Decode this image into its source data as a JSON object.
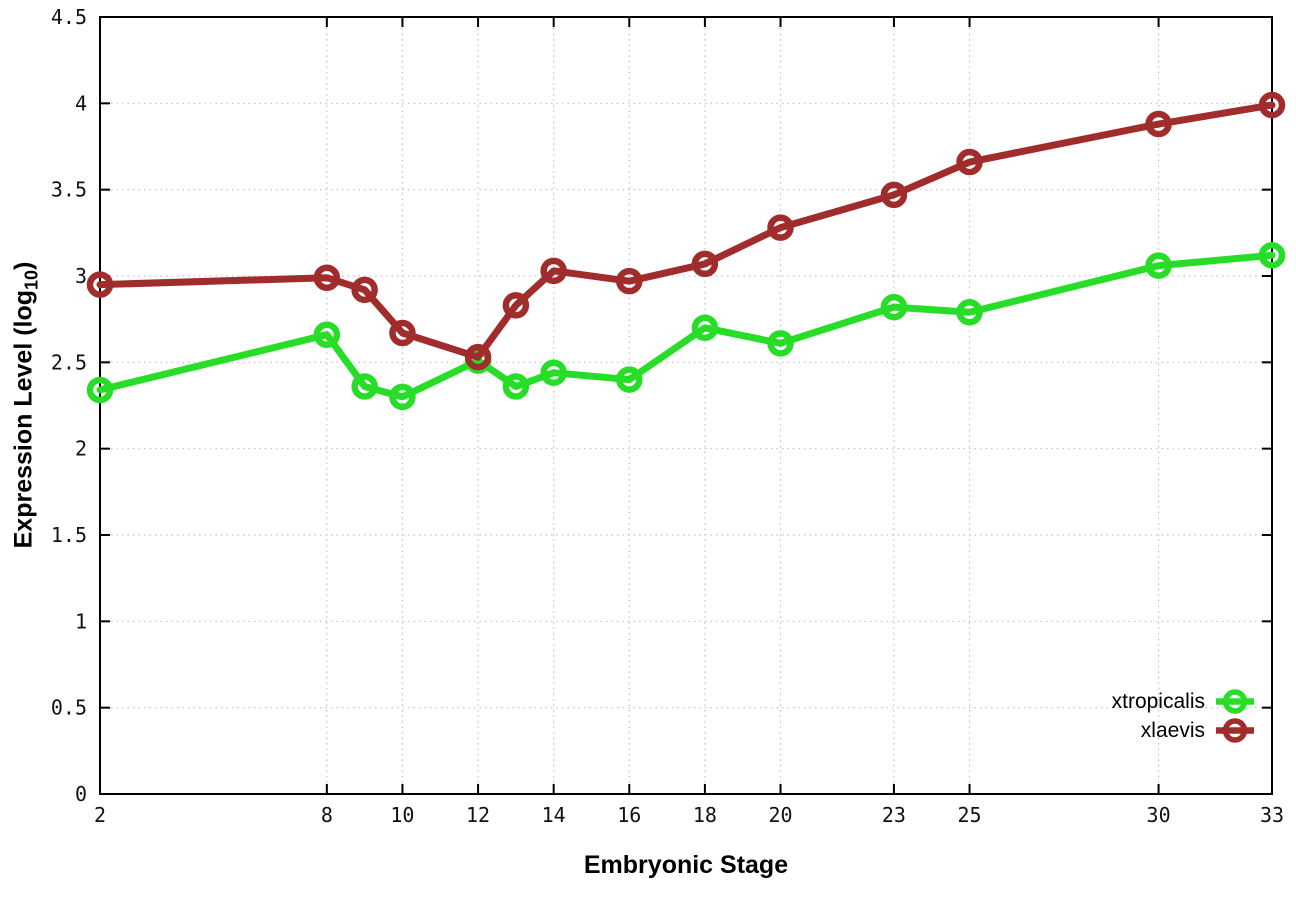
{
  "axes": {
    "x_title": "Embryonic Stage",
    "y_title_pre": "Expression Level (log",
    "y_title_sub": "10",
    "y_title_post": ")"
  },
  "legend": {
    "items": [
      {
        "label": "xtropicalis",
        "color": "#28dd28"
      },
      {
        "label": "xlaevis",
        "color": "#a02c2c"
      }
    ]
  },
  "chart_data": {
    "type": "line",
    "title": "",
    "xlabel": "Embryonic Stage",
    "ylabel": "Expression Level (log10)",
    "x": [
      2,
      8,
      9,
      10,
      12,
      13,
      14,
      16,
      18,
      20,
      23,
      25,
      30,
      33
    ],
    "series": [
      {
        "name": "xtropicalis",
        "color": "#28dd28",
        "values": [
          2.34,
          2.66,
          2.36,
          2.3,
          2.51,
          2.36,
          2.44,
          2.4,
          2.7,
          2.61,
          2.82,
          2.79,
          3.06,
          3.12
        ]
      },
      {
        "name": "xlaevis",
        "color": "#a02c2c",
        "values": [
          2.95,
          2.99,
          2.92,
          2.67,
          2.53,
          2.83,
          3.03,
          2.97,
          3.07,
          3.28,
          3.47,
          3.66,
          3.88,
          3.99
        ]
      }
    ],
    "xlim": [
      2,
      33
    ],
    "ylim": [
      0,
      4.5
    ],
    "xtick_values": [
      2,
      8,
      10,
      12,
      14,
      16,
      18,
      20,
      23,
      25,
      30,
      33
    ],
    "xtick_labels": [
      "2",
      "8",
      "10",
      "12",
      "14",
      "16",
      "18",
      "20",
      "23",
      "25",
      "30",
      "33"
    ],
    "ytick_values": [
      0,
      0.5,
      1,
      1.5,
      2,
      2.5,
      3,
      3.5,
      4,
      4.5
    ],
    "ytick_labels": [
      "0",
      "0.5",
      "1",
      "1.5",
      "2",
      "2.5",
      "3",
      "3.5",
      "4",
      "4.5"
    ],
    "grid": true,
    "grid_color": "#bcc2cd",
    "border_color": "#000000",
    "legend_position": "inside-bottom-right",
    "marker": "open-circle"
  }
}
